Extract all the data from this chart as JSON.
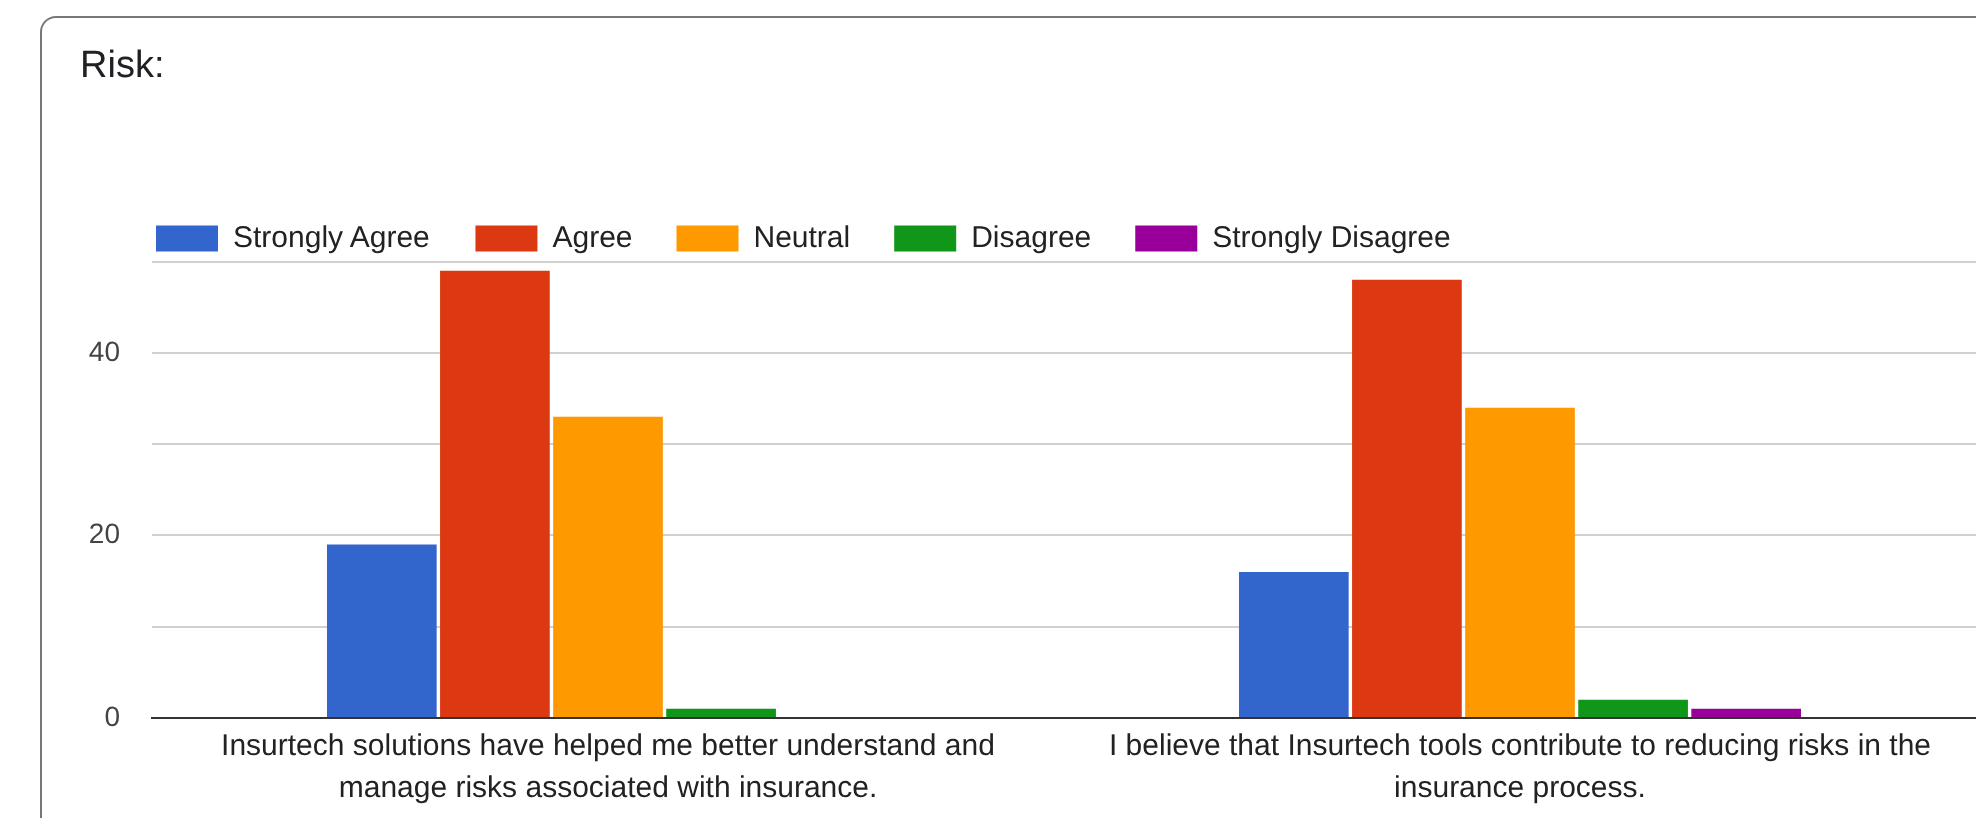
{
  "chart_data": {
    "type": "bar",
    "title": "Risk:",
    "categories": [
      "Insurtech solutions have helped me better understand and manage risks associated with insurance.",
      "I believe that Insurtech tools contribute to reducing risks in the insurance process."
    ],
    "series": [
      {
        "name": "Strongly Agree",
        "color": "#3366cc",
        "values": [
          19,
          16
        ]
      },
      {
        "name": "Agree",
        "color": "#dc3912",
        "values": [
          49,
          48
        ]
      },
      {
        "name": "Neutral",
        "color": "#ff9900",
        "values": [
          33,
          34
        ]
      },
      {
        "name": "Disagree",
        "color": "#109618",
        "values": [
          1,
          2
        ]
      },
      {
        "name": "Strongly Disagree",
        "color": "#990099",
        "values": [
          0,
          1
        ]
      }
    ],
    "ylim": [
      0,
      50
    ],
    "yticks": [
      0,
      {
        "value": 10,
        "label": null
      },
      20,
      {
        "value": 30,
        "label": null
      },
      40,
      {
        "value": 50,
        "label": null
      }
    ],
    "grid": "y",
    "legend": "top left"
  }
}
